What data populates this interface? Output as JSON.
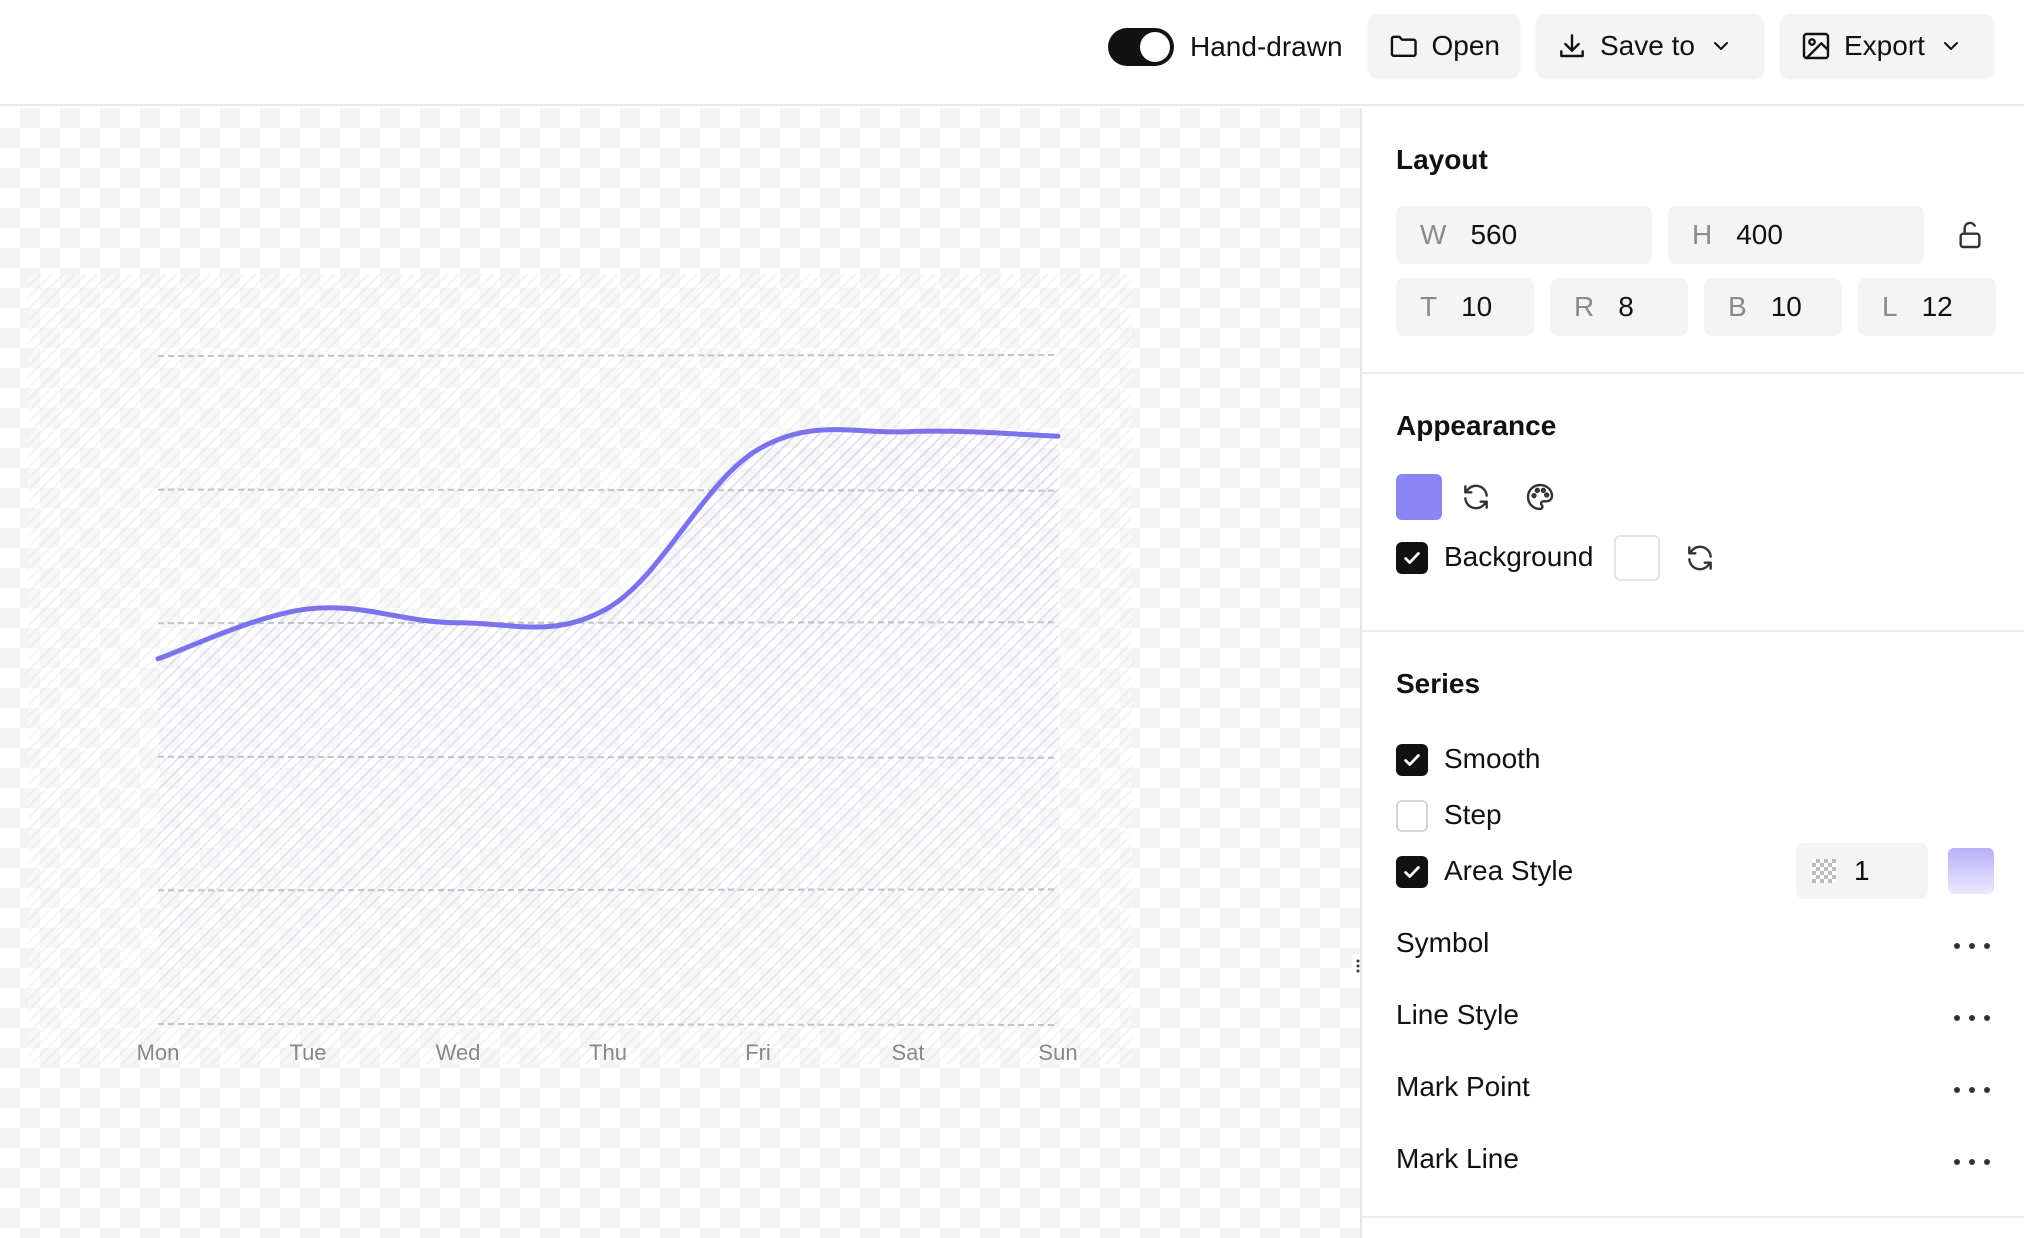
{
  "toolbar": {
    "handdrawn_label": "Hand-drawn",
    "handdrawn_on": true,
    "open_label": "Open",
    "save_label": "Save to",
    "export_label": "Export"
  },
  "layout": {
    "title": "Layout",
    "w_label": "W",
    "w_value": "560",
    "h_label": "H",
    "h_value": "400",
    "t_label": "T",
    "t_value": "10",
    "r_label": "R",
    "r_value": "8",
    "b_label": "B",
    "b_value": "10",
    "l_label": "L",
    "l_value": "12"
  },
  "appearance": {
    "title": "Appearance",
    "color": "#8b84f5",
    "background_label": "Background",
    "background_checked": true,
    "background_color": "#ffffff"
  },
  "series": {
    "title": "Series",
    "smooth_label": "Smooth",
    "smooth_checked": true,
    "step_label": "Step",
    "step_checked": false,
    "area_label": "Area Style",
    "area_checked": true,
    "area_opacity": "1",
    "symbol_label": "Symbol",
    "line_style_label": "Line Style",
    "mark_point_label": "Mark Point",
    "mark_line_label": "Mark Line"
  },
  "chart_data": {
    "type": "area",
    "categories": [
      "Mon",
      "Tue",
      "Wed",
      "Thu",
      "Fri",
      "Sat",
      "Sun"
    ],
    "values": [
      820,
      932,
      901,
      934,
      1290,
      1330,
      1320
    ],
    "ylim": [
      0,
      1500
    ],
    "grid": true,
    "smooth": true,
    "color": "#7b72ee"
  }
}
